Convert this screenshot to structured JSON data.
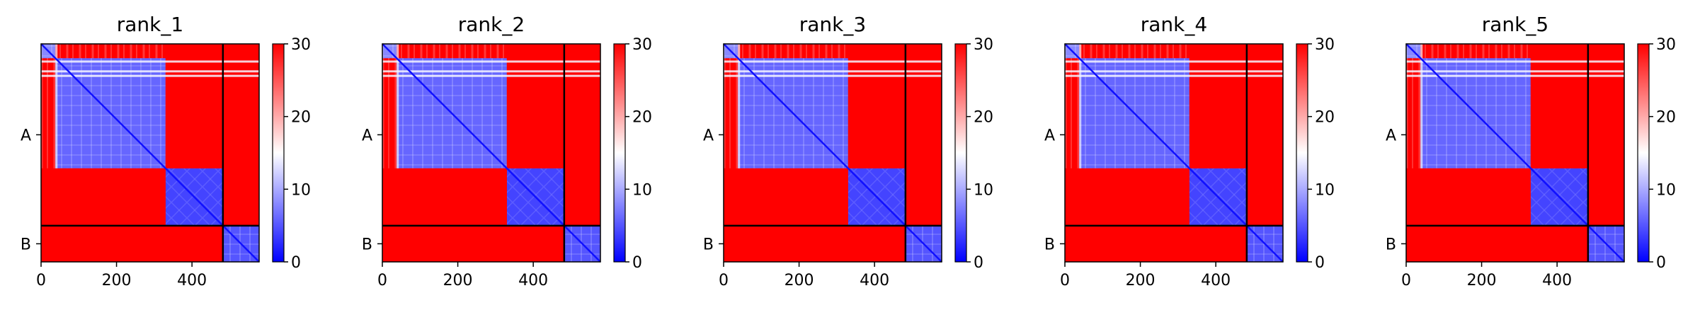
{
  "chart_data": [
    {
      "type": "heatmap",
      "title": "rank_1",
      "xlabel": "",
      "ylabel": "",
      "xlim": [
        0,
        578
      ],
      "x_ticks": [
        0,
        200,
        400
      ],
      "y_tick_labels": [
        "A",
        "B"
      ],
      "chain_A_length": 482,
      "chain_B_length": 96,
      "blocks": [
        {
          "rows": "A 1-38",
          "cols": "A 1-38",
          "value": 8
        },
        {
          "rows": "A 39-330",
          "cols": "A 39-330",
          "value": 6
        },
        {
          "rows": "A 331-482",
          "cols": "A 331-482",
          "value": 4
        },
        {
          "rows": "A 1-330",
          "cols": "A 331-482",
          "value": 30
        },
        {
          "rows": "A 331-482",
          "cols": "A 1-330",
          "value": 30
        },
        {
          "rows": "A",
          "cols": "B",
          "value": 30
        },
        {
          "rows": "B",
          "cols": "A",
          "value": 30
        },
        {
          "rows": "B",
          "cols": "B",
          "value": 5
        }
      ],
      "colorbar": {
        "min": 0,
        "max": 30,
        "ticks": [
          0,
          10,
          20,
          30
        ],
        "colormap": "bwr",
        "low_color": "#0000ff",
        "mid_color": "#ffffff",
        "high_color": "#ff0000"
      }
    },
    {
      "type": "heatmap",
      "title": "rank_2",
      "xlabel": "",
      "ylabel": "",
      "xlim": [
        0,
        578
      ],
      "x_ticks": [
        0,
        200,
        400
      ],
      "y_tick_labels": [
        "A",
        "B"
      ],
      "chain_A_length": 482,
      "chain_B_length": 96,
      "blocks": [
        {
          "rows": "A 1-38",
          "cols": "A 1-38",
          "value": 8
        },
        {
          "rows": "A 39-330",
          "cols": "A 39-330",
          "value": 6
        },
        {
          "rows": "A 331-482",
          "cols": "A 331-482",
          "value": 4
        },
        {
          "rows": "A 1-330",
          "cols": "A 331-482",
          "value": 30
        },
        {
          "rows": "A 331-482",
          "cols": "A 1-330",
          "value": 30
        },
        {
          "rows": "A",
          "cols": "B",
          "value": 30
        },
        {
          "rows": "B",
          "cols": "A",
          "value": 30
        },
        {
          "rows": "B",
          "cols": "B",
          "value": 5
        }
      ],
      "colorbar": {
        "min": 0,
        "max": 30,
        "ticks": [
          0,
          10,
          20,
          30
        ],
        "colormap": "bwr",
        "low_color": "#0000ff",
        "mid_color": "#ffffff",
        "high_color": "#ff0000"
      }
    },
    {
      "type": "heatmap",
      "title": "rank_3",
      "xlabel": "",
      "ylabel": "",
      "xlim": [
        0,
        578
      ],
      "x_ticks": [
        0,
        200,
        400
      ],
      "y_tick_labels": [
        "A",
        "B"
      ],
      "chain_A_length": 482,
      "chain_B_length": 96,
      "blocks": [
        {
          "rows": "A 1-38",
          "cols": "A 1-38",
          "value": 8
        },
        {
          "rows": "A 39-330",
          "cols": "A 39-330",
          "value": 6
        },
        {
          "rows": "A 331-482",
          "cols": "A 331-482",
          "value": 4
        },
        {
          "rows": "A 1-330",
          "cols": "A 331-482",
          "value": 30
        },
        {
          "rows": "A 331-482",
          "cols": "A 1-330",
          "value": 30
        },
        {
          "rows": "A",
          "cols": "B",
          "value": 30
        },
        {
          "rows": "B",
          "cols": "A",
          "value": 30
        },
        {
          "rows": "B",
          "cols": "B",
          "value": 5
        }
      ],
      "colorbar": {
        "min": 0,
        "max": 30,
        "ticks": [
          0,
          10,
          20,
          30
        ],
        "colormap": "bwr",
        "low_color": "#0000ff",
        "mid_color": "#ffffff",
        "high_color": "#ff0000"
      }
    },
    {
      "type": "heatmap",
      "title": "rank_4",
      "xlabel": "",
      "ylabel": "",
      "xlim": [
        0,
        578
      ],
      "x_ticks": [
        0,
        200,
        400
      ],
      "y_tick_labels": [
        "A",
        "B"
      ],
      "chain_A_length": 482,
      "chain_B_length": 96,
      "blocks": [
        {
          "rows": "A 1-38",
          "cols": "A 1-38",
          "value": 8
        },
        {
          "rows": "A 39-330",
          "cols": "A 39-330",
          "value": 6
        },
        {
          "rows": "A 331-482",
          "cols": "A 331-482",
          "value": 4
        },
        {
          "rows": "A 1-330",
          "cols": "A 331-482",
          "value": 30
        },
        {
          "rows": "A 331-482",
          "cols": "A 1-330",
          "value": 30
        },
        {
          "rows": "A",
          "cols": "B",
          "value": 30
        },
        {
          "rows": "B",
          "cols": "A",
          "value": 30
        },
        {
          "rows": "B",
          "cols": "B",
          "value": 5
        }
      ],
      "colorbar": {
        "min": 0,
        "max": 30,
        "ticks": [
          0,
          10,
          20,
          30
        ],
        "colormap": "bwr",
        "low_color": "#0000ff",
        "mid_color": "#ffffff",
        "high_color": "#ff0000"
      }
    },
    {
      "type": "heatmap",
      "title": "rank_5",
      "xlabel": "",
      "ylabel": "",
      "xlim": [
        0,
        578
      ],
      "x_ticks": [
        0,
        200,
        400
      ],
      "y_tick_labels": [
        "A",
        "B"
      ],
      "chain_A_length": 482,
      "chain_B_length": 96,
      "blocks": [
        {
          "rows": "A 1-38",
          "cols": "A 1-38",
          "value": 8
        },
        {
          "rows": "A 39-330",
          "cols": "A 39-330",
          "value": 6
        },
        {
          "rows": "A 331-482",
          "cols": "A 331-482",
          "value": 4
        },
        {
          "rows": "A 1-330",
          "cols": "A 331-482",
          "value": 30
        },
        {
          "rows": "A 331-482",
          "cols": "A 1-330",
          "value": 30
        },
        {
          "rows": "A",
          "cols": "B",
          "value": 30
        },
        {
          "rows": "B",
          "cols": "A",
          "value": 30
        },
        {
          "rows": "B",
          "cols": "B",
          "value": 5
        }
      ],
      "colorbar": {
        "min": 0,
        "max": 30,
        "ticks": [
          0,
          10,
          20,
          30
        ],
        "colormap": "bwr",
        "low_color": "#0000ff",
        "mid_color": "#ffffff",
        "high_color": "#ff0000"
      }
    }
  ]
}
